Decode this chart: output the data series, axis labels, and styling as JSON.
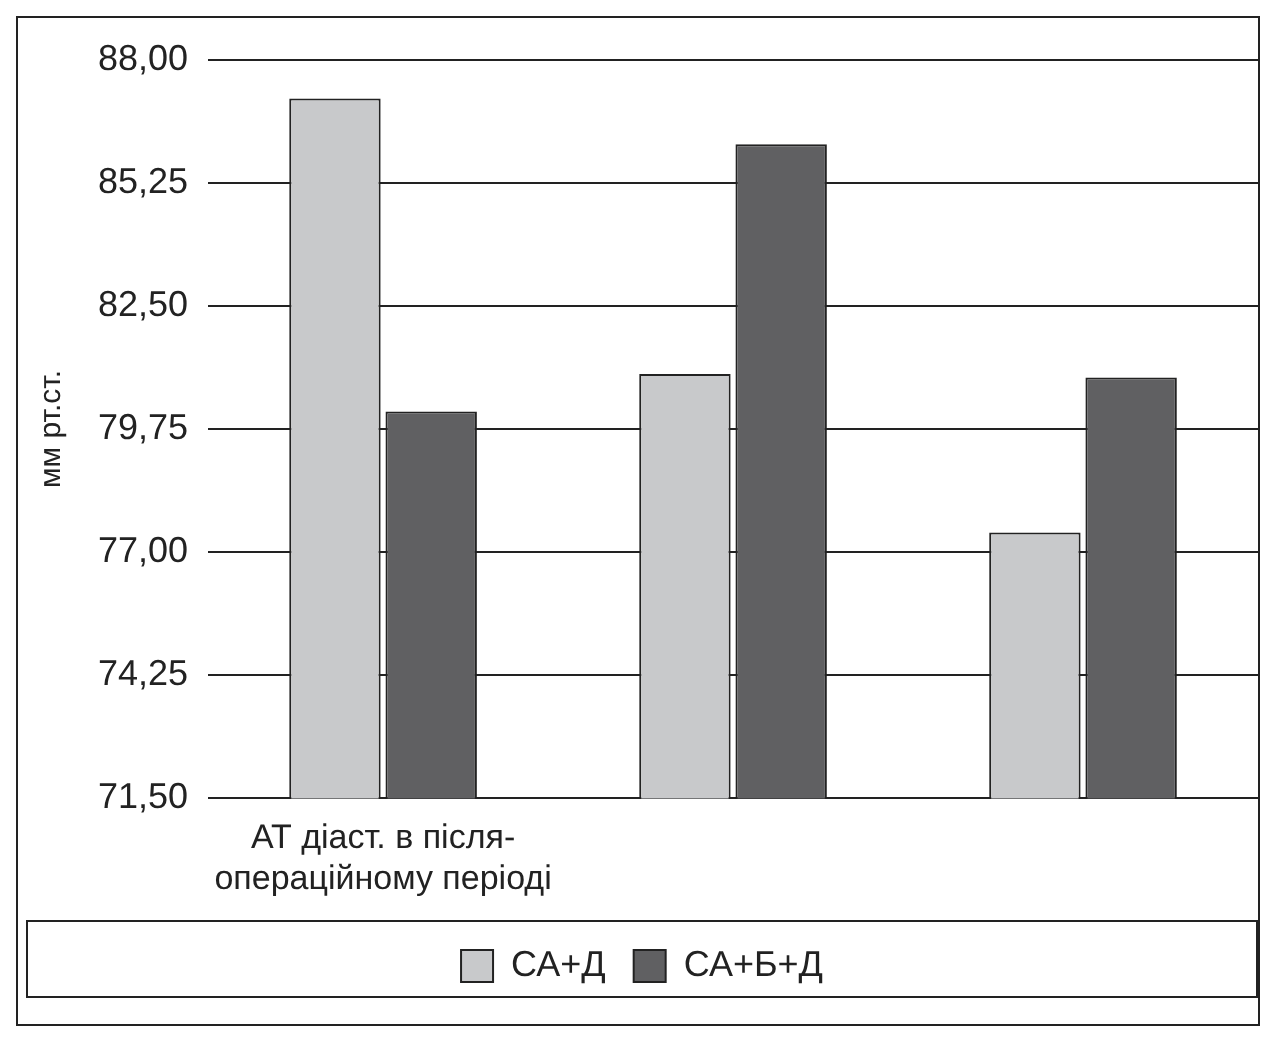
{
  "chart_data": {
    "type": "bar",
    "ylabel": "мм рт.ст.",
    "categories": [
      "АТ діаст. в після-операційному періоді",
      null,
      null
    ],
    "series": [
      {
        "name": "СА+Д",
        "color": "#c8c9cb",
        "values": [
          87.13,
          80.98,
          77.44
        ]
      },
      {
        "name": "СА+Б+Д",
        "color": "#606062",
        "values": [
          80.14,
          86.11,
          80.9
        ]
      }
    ],
    "ylim": [
      71.5,
      88
    ],
    "yticks": [
      {
        "value": 71.5,
        "label": "71,50"
      },
      {
        "value": 74.25,
        "label": "74,25"
      },
      {
        "value": 77,
        "label": "77,00"
      },
      {
        "value": 79.75,
        "label": "79,75"
      },
      {
        "value": 82.5,
        "label": "82,50"
      },
      {
        "value": 85.25,
        "label": "85,25"
      },
      {
        "value": 88,
        "label": "88,00"
      }
    ],
    "grid": "y",
    "legend": "bottom"
  }
}
